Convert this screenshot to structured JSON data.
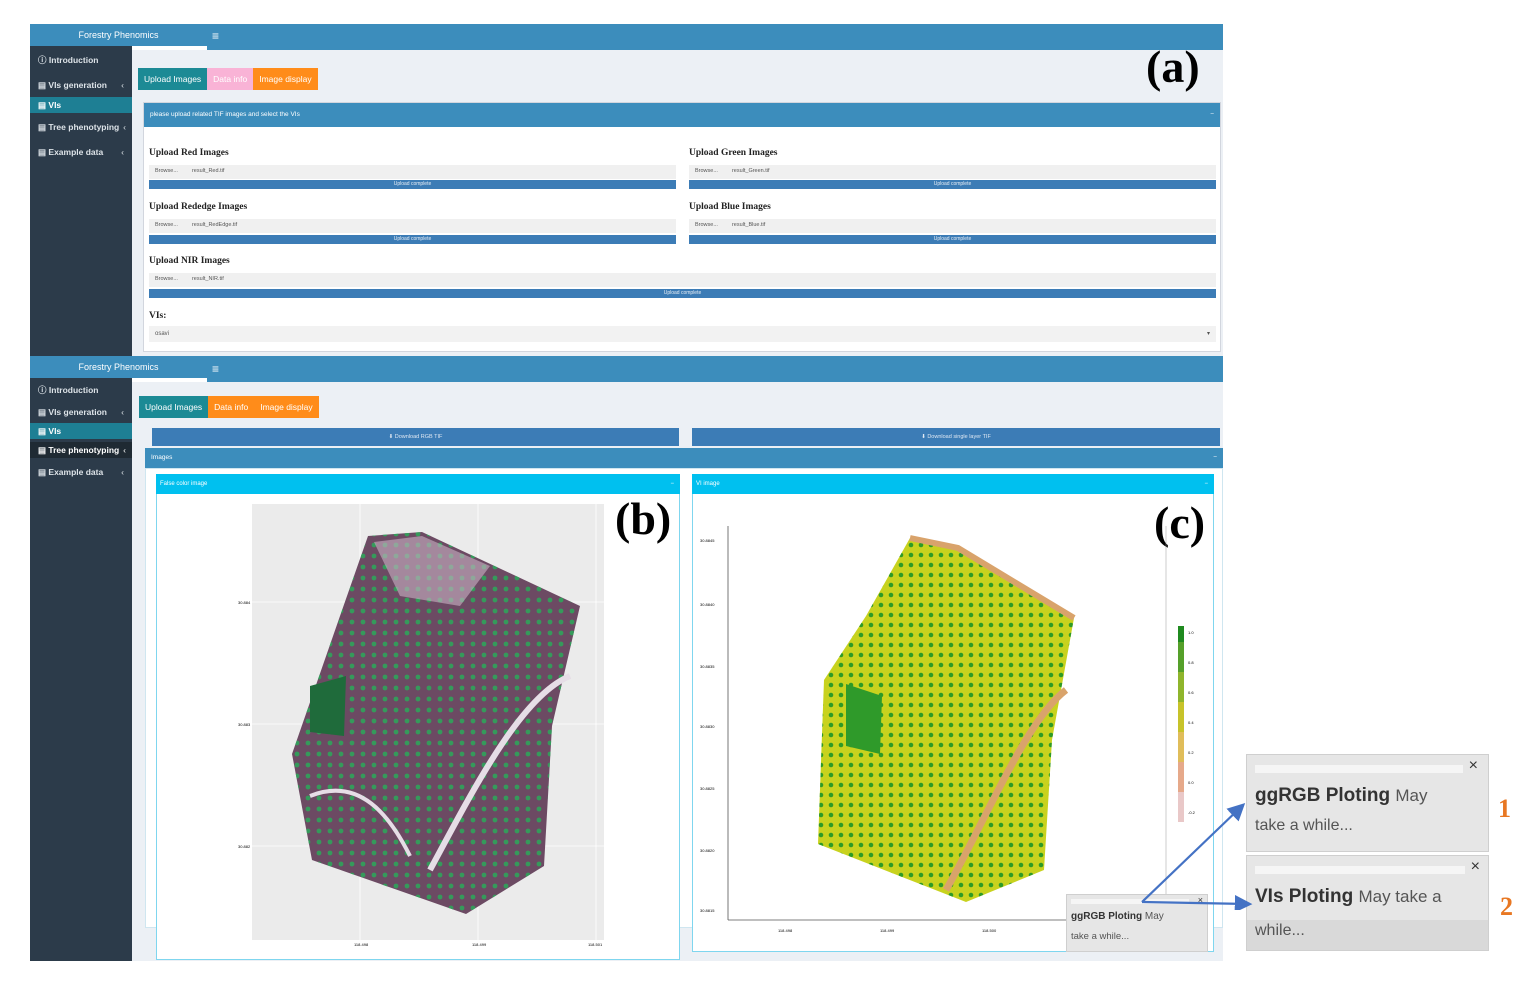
{
  "panels": {
    "a": {
      "brand": "Forestry Phenomics",
      "tag": "(a)",
      "menu": [
        {
          "label": "Introduction",
          "icon": "info-circle-icon",
          "chevron": ""
        },
        {
          "label": "VIs generation",
          "icon": "database-icon",
          "chevron": "‹"
        },
        {
          "label": "VIs",
          "icon": "database-icon",
          "chevron": ""
        },
        {
          "label": "Tree phenotyping",
          "icon": "database-icon",
          "chevron": "‹"
        },
        {
          "label": "Example data",
          "icon": "database-icon",
          "chevron": "‹"
        }
      ],
      "tabs": [
        "Upload Images",
        "Data info",
        "Image display"
      ],
      "box_title": "please upload related TIF images and select the VIs",
      "uploads": [
        {
          "label": "Upload Red Images",
          "browse": "Browse...",
          "file": "result_Red.tif",
          "status": "Upload complete"
        },
        {
          "label": "Upload Green Images",
          "browse": "Browse...",
          "file": "result_Green.tif",
          "status": "Upload complete"
        },
        {
          "label": "Upload Rededge Images",
          "browse": "Browse...",
          "file": "result_RedEdge.tif",
          "status": "Upload complete"
        },
        {
          "label": "Upload Blue Images",
          "browse": "Browse...",
          "file": "result_Blue.tif",
          "status": "Upload complete"
        },
        {
          "label": "Upload NIR Images",
          "browse": "Browse...",
          "file": "result_NIR.tif",
          "status": "Upload complete"
        }
      ],
      "vis_label": "VIs:",
      "vis_value": "osavi"
    },
    "b": {
      "brand": "Forestry Phenomics",
      "menu": [
        {
          "label": "Introduction",
          "chevron": ""
        },
        {
          "label": "VIs generation",
          "chevron": "‹"
        },
        {
          "label": "VIs",
          "chevron": ""
        },
        {
          "label": "Tree phenotyping",
          "chevron": "‹"
        },
        {
          "label": "Example data",
          "chevron": "‹"
        }
      ],
      "tabs": [
        "Upload Images",
        "Data info",
        "Image display"
      ],
      "download_rgb": "Download RGB TIF",
      "download_single": "Download single layer TIF",
      "images_title": "Images",
      "false_color_title": "False color image",
      "vi_title": "VI image",
      "tag_b": "(b)",
      "tag_c": "(c)",
      "legend_ticks": [
        "1.0",
        "0.8",
        "0.6",
        "0.4",
        "0.2",
        "0.0",
        "-0.2"
      ],
      "vi_y_ticks": [
        "30.8845",
        "30.8840",
        "30.8835",
        "30.8830",
        "30.8825",
        "30.8820",
        "30.8815"
      ],
      "vi_x_ticks": [
        "118.498",
        "118.499",
        "118.500"
      ],
      "fc_x_ticks": [
        "118.498",
        "118.499",
        "118.501"
      ],
      "fc_y_ticks": [
        "30.884",
        "30.883",
        "30.882"
      ]
    },
    "toasts": {
      "small": {
        "bold": "ggRGB Ploting",
        "rest": "May",
        "line2": "take a while..."
      },
      "t1": {
        "bold": "ggRGB Ploting",
        "rest": "May",
        "line2": "take a while...",
        "num": "1"
      },
      "t2": {
        "bold": "VIs Ploting",
        "rest": "May take a",
        "line2": "while...",
        "num": "2"
      }
    }
  },
  "colors": {
    "primary": "#3c8dbc",
    "sidebar": "#2c3b4a",
    "teal": "#1c8a95",
    "orange": "#ff8c1a",
    "pink": "#f9b3d6",
    "cyan": "#00c0ef",
    "arrow": "#4472c4",
    "number": "#e87722"
  }
}
